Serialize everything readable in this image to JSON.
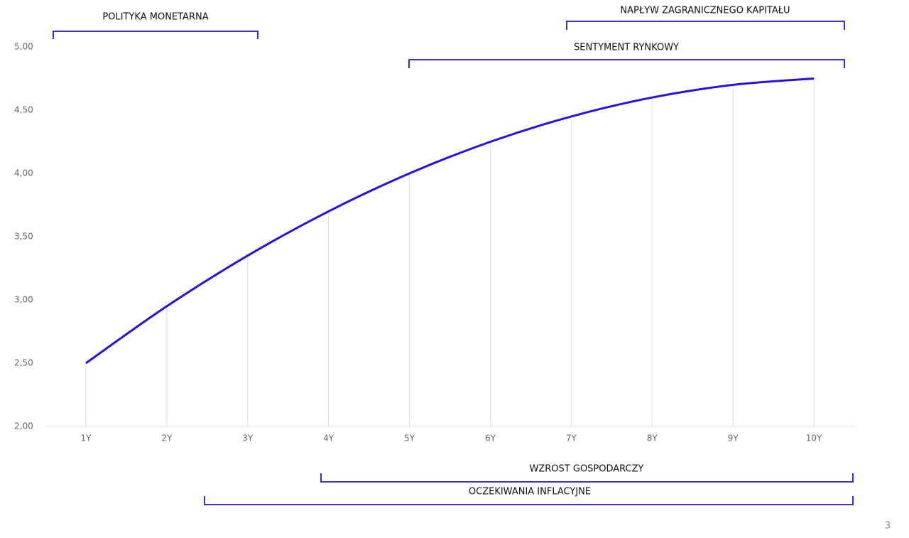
{
  "chart_data": {
    "type": "line",
    "categories": [
      "1Y",
      "2Y",
      "3Y",
      "4Y",
      "5Y",
      "6Y",
      "7Y",
      "8Y",
      "9Y",
      "10Y"
    ],
    "values": [
      2.5,
      2.95,
      3.35,
      3.7,
      4.0,
      4.25,
      4.45,
      4.6,
      4.7,
      4.75
    ],
    "color": "#2a10e0",
    "ylim": [
      2,
      5
    ],
    "yticks": [
      {
        "value": 2,
        "label": "2,00"
      },
      {
        "value": 2.5,
        "label": "2,50"
      },
      {
        "value": 3,
        "label": "3,00"
      },
      {
        "value": 3.5,
        "label": "3,50"
      },
      {
        "value": 4,
        "label": "4,00"
      },
      {
        "value": 4.5,
        "label": "4,50"
      },
      {
        "value": 5,
        "label": "5,00"
      }
    ],
    "annotations": [
      "POLITYKA MONETARNA",
      "NAPŁYW ZAGRANICZNEGO KAPITAŁU",
      "SENTYMENT RYNKOWY",
      "WZROST GOSPODARCZY",
      "OCZEKIWANIA INFLACYJNE"
    ]
  },
  "page_number": "3"
}
